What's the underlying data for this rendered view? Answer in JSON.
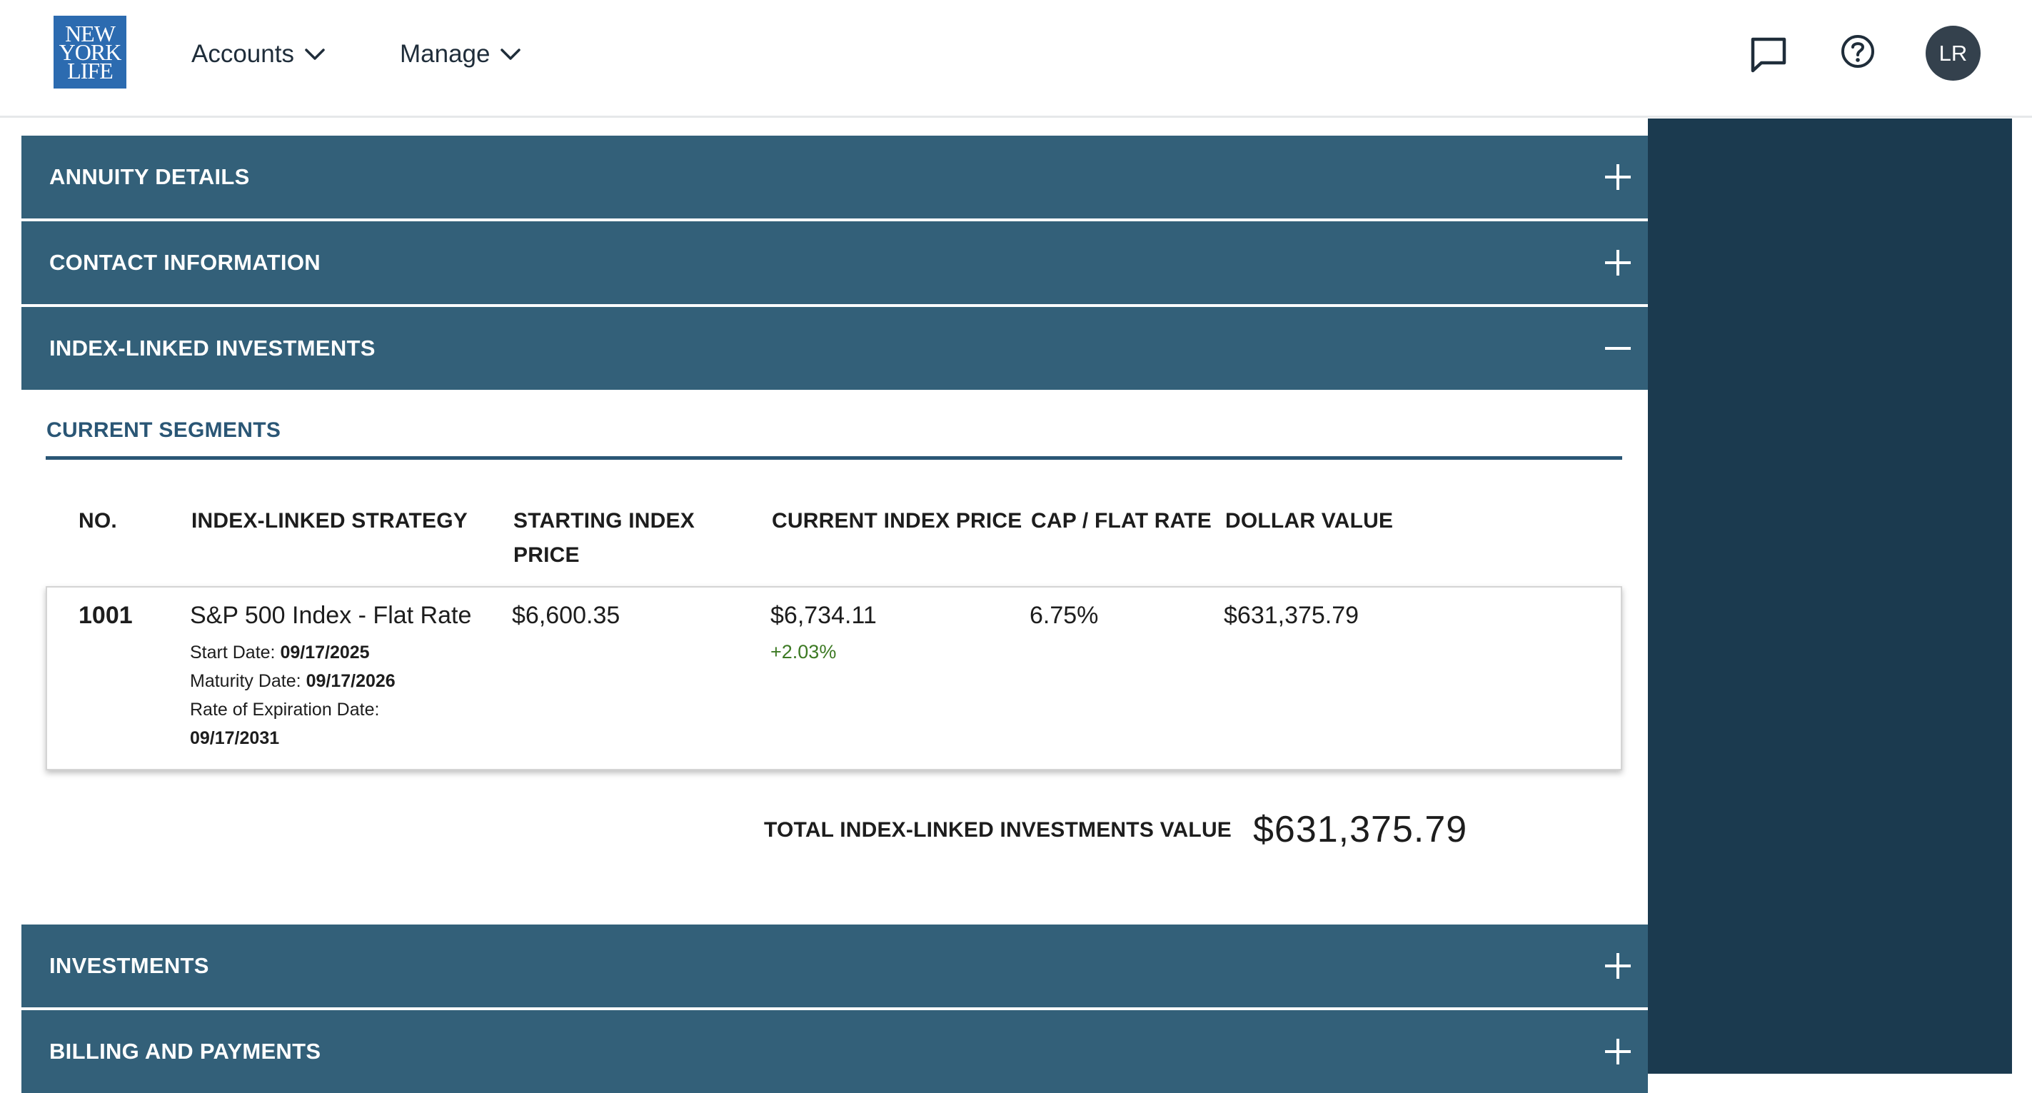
{
  "header": {
    "logo": {
      "line1": "NEW",
      "line2": "YORK",
      "line3": "LIFE"
    },
    "nav": [
      {
        "label": "Accounts"
      },
      {
        "label": "Manage"
      }
    ],
    "icons": {
      "chat": "chat-bubble-icon",
      "help": "question-circle-icon"
    },
    "avatar_initials": "LR"
  },
  "accordion": {
    "annuity_details": "ANNUITY DETAILS",
    "contact_information": "CONTACT INFORMATION",
    "index_linked_investments": "INDEX-LINKED INVESTMENTS",
    "investments": "INVESTMENTS",
    "billing_and_payments": "BILLING AND PAYMENTS"
  },
  "segments": {
    "title": "CURRENT SEGMENTS",
    "columns": {
      "no": "NO.",
      "strategy": "INDEX-LINKED STRATEGY",
      "starting_price_line1": "STARTING INDEX",
      "starting_price_line2": "PRICE",
      "current_price": "CURRENT INDEX PRICE",
      "cap_rate": "CAP / FLAT RATE",
      "dollar_value": "DOLLAR VALUE"
    },
    "rows": [
      {
        "no": "1001",
        "strategy": "S&P 500 Index - Flat Rate",
        "start_date_label": "Start Date: ",
        "start_date": "09/17/2025",
        "maturity_date_label": "Maturity Date: ",
        "maturity_date": "09/17/2026",
        "expiration_label": "Rate of Expiration Date:",
        "expiration_date": "09/17/2031",
        "starting_price": "$6,600.35",
        "current_price": "$6,734.11",
        "change_pct": "+2.03%",
        "cap_rate": "6.75%",
        "dollar_value": "$631,375.79"
      }
    ],
    "total_label": "TOTAL INDEX-LINKED INVESTMENTS VALUE",
    "total_value": "$631,375.79"
  },
  "colors": {
    "accordion_bar": "#336079",
    "side_panel": "#1b3a4f",
    "logo_blue": "#2c6bb0",
    "section_title": "#2a5675",
    "positive_change": "#3d7a24"
  }
}
